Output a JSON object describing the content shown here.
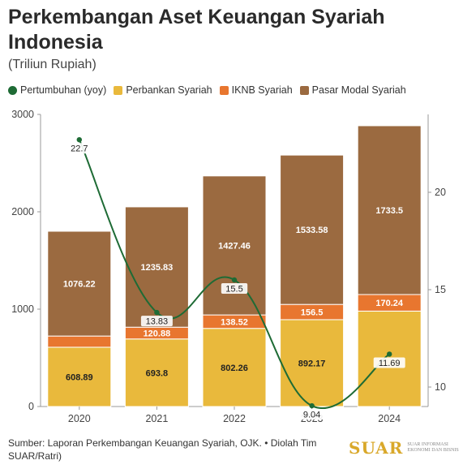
{
  "title": "Perkembangan Aset Keuangan Syariah Indonesia",
  "subtitle": "(Triliun Rupiah)",
  "legend": [
    {
      "label": "Pertumbuhan (yoy)",
      "color": "#1e6b35",
      "shape": "dot"
    },
    {
      "label": "Perbankan Syariah",
      "color": "#e9b93c",
      "shape": "square"
    },
    {
      "label": "IKNB Syariah",
      "color": "#e8762f",
      "shape": "square"
    },
    {
      "label": "Pasar Modal Syariah",
      "color": "#9b6a40",
      "shape": "square"
    }
  ],
  "chart_data": {
    "type": "bar",
    "stacked": true,
    "categories": [
      "2020",
      "2021",
      "2022",
      "2023",
      "2024"
    ],
    "series": [
      {
        "name": "Perbankan Syariah",
        "color": "#e9b93c",
        "values": [
          608.89,
          693.8,
          802.26,
          892.17,
          980.0
        ],
        "labels": [
          "608.89",
          "693.8",
          "802.26",
          "892.17",
          ""
        ]
      },
      {
        "name": "IKNB Syariah",
        "color": "#e8762f",
        "values": [
          115.0,
          120.88,
          138.52,
          156.5,
          170.24
        ],
        "labels": [
          "",
          "120.88",
          "138.52",
          "156.5",
          "170.24"
        ]
      },
      {
        "name": "Pasar Modal Syariah",
        "color": "#9b6a40",
        "values": [
          1076.22,
          1235.83,
          1427.46,
          1533.58,
          1733.5
        ],
        "labels": [
          "1076.22",
          "1235.83",
          "1427.46",
          "1533.58",
          "1733.5"
        ]
      }
    ],
    "line": {
      "name": "Pertumbuhan (yoy)",
      "color": "#1e6b35",
      "axis": "right",
      "values": [
        22.7,
        13.83,
        15.5,
        9.04,
        11.69
      ],
      "labels": [
        "22.7",
        "13.83",
        "15.5",
        "9.04",
        "11.69"
      ]
    },
    "left_axis": {
      "ylim": [
        0,
        3000
      ],
      "ticks": [
        "0",
        "1000",
        "2000",
        "3000"
      ]
    },
    "right_axis": {
      "ylim": [
        9,
        24
      ],
      "ticks": [
        "10",
        "15",
        "20"
      ]
    },
    "grid": false
  },
  "source": "Sumber: Laporan Perkembangan Keuangan Syariah, OJK. • Diolah Tim SUAR/Ratri)",
  "logo": {
    "word": "SUAR",
    "tagline": "Suar Informasi Ekonomi dan Bisnis"
  }
}
